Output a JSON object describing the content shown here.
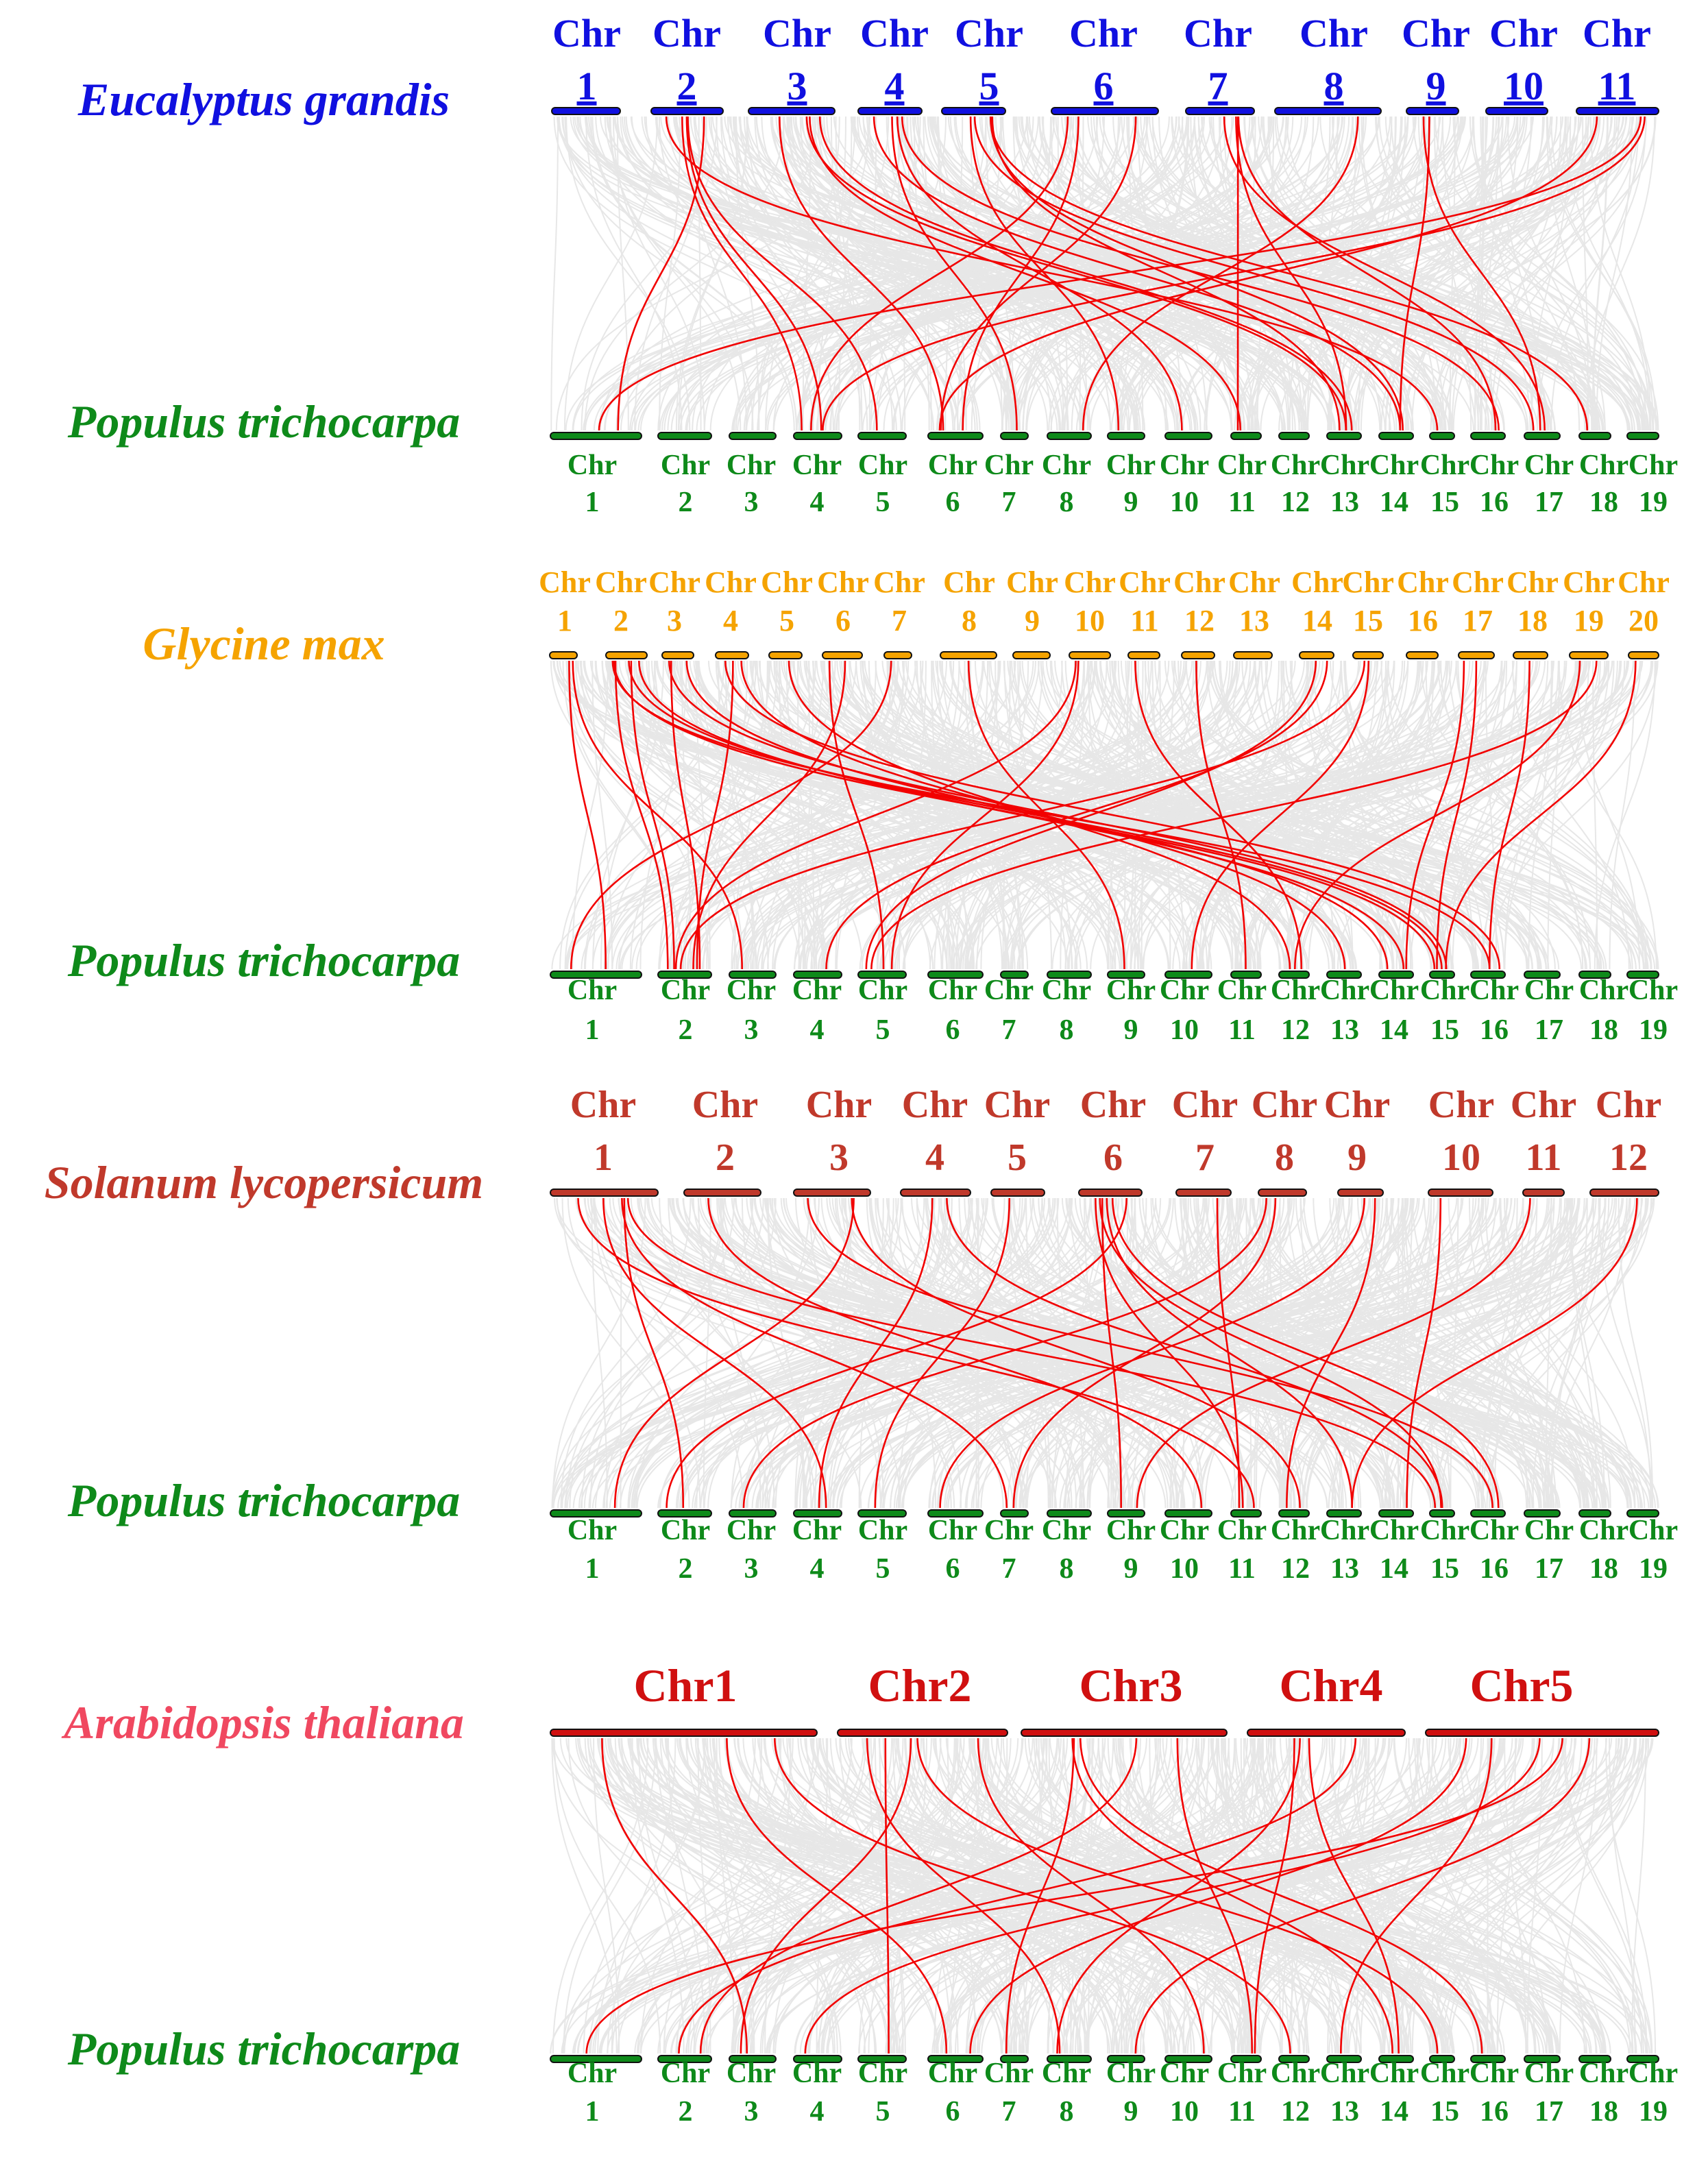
{
  "colors": {
    "background": "#ffffff",
    "ribbon_gray": "#d4d4d4",
    "ribbon_red": "#f20000",
    "poplar": "#0e8a1a",
    "eucalyptus": "#1010e0",
    "glycine": "#f5a300",
    "solanum": "#c0392b",
    "arabidopsis": "#d01010",
    "arabidopsis_name": "#f04860"
  },
  "panels": [
    {
      "id": "eucalyptus",
      "top_species": "Eucalyptus grandis",
      "bottom_species": "Populus trichocarpa",
      "top_prefix": "Chr",
      "top_chromosomes": [
        "1",
        "2",
        "3",
        "4",
        "5",
        "6",
        "7",
        "8",
        "9",
        "10",
        "11"
      ],
      "bottom_prefix": "Chr",
      "bottom_chromosomes": [
        "1",
        "2",
        "3",
        "4",
        "5",
        "6",
        "7",
        "8",
        "9",
        "10",
        "11",
        "12",
        "13",
        "14",
        "15",
        "16",
        "17",
        "18",
        "19"
      ]
    },
    {
      "id": "glycine",
      "top_species": "Glycine max",
      "bottom_species": "Populus trichocarpa",
      "top_prefix": "Chr",
      "top_chromosomes": [
        "1",
        "2",
        "3",
        "4",
        "5",
        "6",
        "7",
        "8",
        "9",
        "10",
        "11",
        "12",
        "13",
        "14",
        "15",
        "16",
        "17",
        "18",
        "19",
        "20"
      ],
      "bottom_prefix": "Chr",
      "bottom_chromosomes": [
        "1",
        "2",
        "3",
        "4",
        "5",
        "6",
        "7",
        "8",
        "9",
        "10",
        "11",
        "12",
        "13",
        "14",
        "15",
        "16",
        "17",
        "18",
        "19"
      ]
    },
    {
      "id": "solanum",
      "top_species": "Solanum lycopersicum",
      "bottom_species": "Populus trichocarpa",
      "top_prefix": "Chr",
      "top_chromosomes": [
        "1",
        "2",
        "3",
        "4",
        "5",
        "6",
        "7",
        "8",
        "9",
        "10",
        "11",
        "12"
      ],
      "bottom_prefix": "Chr",
      "bottom_chromosomes": [
        "1",
        "2",
        "3",
        "4",
        "5",
        "6",
        "7",
        "8",
        "9",
        "10",
        "11",
        "12",
        "13",
        "14",
        "15",
        "16",
        "17",
        "18",
        "19"
      ]
    },
    {
      "id": "arabidopsis",
      "top_species": "Arabidopsis thaliana",
      "bottom_species": "Populus trichocarpa",
      "top_prefix": "",
      "top_chromosomes": [
        "Chr1",
        "Chr2",
        "Chr3",
        "Chr4",
        "Chr5"
      ],
      "bottom_prefix": "Chr",
      "bottom_chromosomes": [
        "1",
        "2",
        "3",
        "4",
        "5",
        "6",
        "7",
        "8",
        "9",
        "10",
        "11",
        "12",
        "13",
        "14",
        "15",
        "16",
        "17",
        "18",
        "19"
      ]
    }
  ]
}
